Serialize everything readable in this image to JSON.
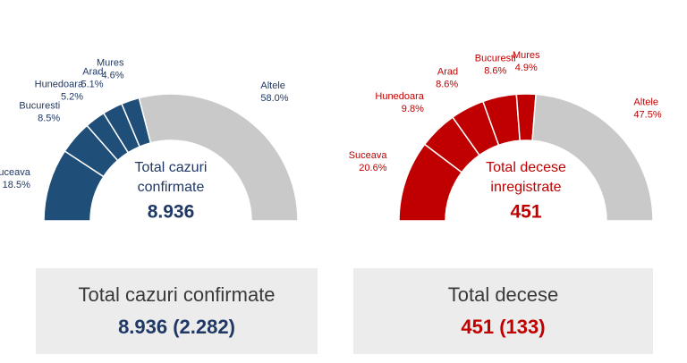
{
  "chart_data": [
    {
      "type": "semi-donut",
      "categories": [
        "Suceava",
        "Bucuresti",
        "Hunedoara",
        "Arad",
        "Mures",
        "Altele"
      ],
      "values": [
        18.5,
        8.5,
        5.2,
        5.1,
        4.6,
        58.0
      ],
      "value_labels": [
        "18.5%",
        "8.5%",
        "5.2%",
        "5.1%",
        "4.6%",
        "58.0%"
      ],
      "colors": [
        "#1f4e79",
        "#1f4e79",
        "#1f4e79",
        "#1f4e79",
        "#1f4e79",
        "#c9c9c9"
      ],
      "text_color": "#1f3864",
      "center_title": [
        "Total cazuri",
        "confirmate"
      ],
      "center_value": "8.936"
    },
    {
      "type": "semi-donut",
      "categories": [
        "Suceava",
        "Hunedoara",
        "Arad",
        "Bucuresti",
        "Mures",
        "Altele"
      ],
      "values": [
        20.6,
        9.8,
        8.6,
        8.6,
        4.9,
        47.5
      ],
      "value_labels": [
        "20.6%",
        "9.8%",
        "8.6%",
        "8.6%",
        "4.9%",
        "47.5%"
      ],
      "colors": [
        "#c00000",
        "#c00000",
        "#c00000",
        "#c00000",
        "#c00000",
        "#c9c9c9"
      ],
      "text_color": "#c00000",
      "center_title": [
        "Total decese",
        "inregistrate"
      ],
      "center_value": "451"
    }
  ],
  "summary": [
    {
      "title": "Total cazuri confirmate",
      "value": "8.936 (2.282)",
      "color": "#1f3864"
    },
    {
      "title": "Total decese",
      "value": "451 (133)",
      "color": "#c00000"
    }
  ]
}
